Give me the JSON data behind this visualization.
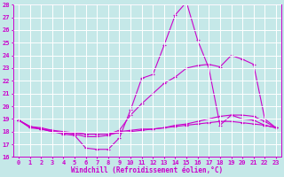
{
  "xlabel": "Windchill (Refroidissement éolien,°C)",
  "ylabel": "",
  "xlim": [
    -0.5,
    23.5
  ],
  "ylim": [
    16,
    28
  ],
  "yticks": [
    16,
    17,
    18,
    19,
    20,
    21,
    22,
    23,
    24,
    25,
    26,
    27,
    28
  ],
  "xticks": [
    0,
    1,
    2,
    3,
    4,
    5,
    6,
    7,
    8,
    9,
    10,
    11,
    12,
    13,
    14,
    15,
    16,
    17,
    18,
    19,
    20,
    21,
    22,
    23
  ],
  "bg_color": "#c5e8e8",
  "grid_color": "#ffffff",
  "line_color": "#cc00cc",
  "lines": [
    {
      "x": [
        0,
        1,
        2,
        3,
        4,
        5,
        6,
        7,
        8,
        9,
        10,
        11,
        12,
        13,
        14,
        15,
        16,
        17,
        18,
        19,
        20,
        21,
        22,
        23
      ],
      "y": [
        18.9,
        18.4,
        18.2,
        18.0,
        17.8,
        17.7,
        16.7,
        16.6,
        16.6,
        17.5,
        19.7,
        22.2,
        22.5,
        24.8,
        27.2,
        28.2,
        25.2,
        23.0,
        18.5,
        19.3,
        19.0,
        18.9,
        18.5,
        18.3
      ]
    },
    {
      "x": [
        0,
        1,
        2,
        3,
        4,
        5,
        6,
        7,
        8,
        9,
        10,
        11,
        12,
        13,
        14,
        15,
        16,
        17,
        18,
        19,
        20,
        21,
        22,
        23
      ],
      "y": [
        18.9,
        18.3,
        18.2,
        18.1,
        17.9,
        17.8,
        17.6,
        17.6,
        17.7,
        18.0,
        18.1,
        18.2,
        18.2,
        18.3,
        18.4,
        18.5,
        18.6,
        18.7,
        18.8,
        18.8,
        18.7,
        18.6,
        18.5,
        18.3
      ]
    },
    {
      "x": [
        0,
        1,
        2,
        3,
        4,
        5,
        6,
        7,
        8,
        9,
        10,
        11,
        12,
        13,
        14,
        15,
        16,
        17,
        18,
        19,
        20,
        21,
        22,
        23
      ],
      "y": [
        18.9,
        18.4,
        18.3,
        18.1,
        18.0,
        17.9,
        17.8,
        17.8,
        17.8,
        18.1,
        19.3,
        20.2,
        21.0,
        21.8,
        22.3,
        23.0,
        23.2,
        23.3,
        23.1,
        24.0,
        23.7,
        23.3,
        19.0,
        18.3
      ]
    },
    {
      "x": [
        0,
        1,
        2,
        3,
        4,
        5,
        6,
        7,
        8,
        9,
        10,
        11,
        12,
        13,
        14,
        15,
        16,
        17,
        18,
        19,
        20,
        21,
        22,
        23
      ],
      "y": [
        18.9,
        18.4,
        18.2,
        18.0,
        17.9,
        17.9,
        17.8,
        17.8,
        17.8,
        17.9,
        18.0,
        18.1,
        18.2,
        18.3,
        18.5,
        18.6,
        18.8,
        19.0,
        19.2,
        19.3,
        19.3,
        19.2,
        18.8,
        18.3
      ]
    }
  ],
  "marker": "+",
  "markersize": 3,
  "linewidth": 0.8,
  "xlabel_fontsize": 5.5,
  "tick_fontsize": 5.0
}
